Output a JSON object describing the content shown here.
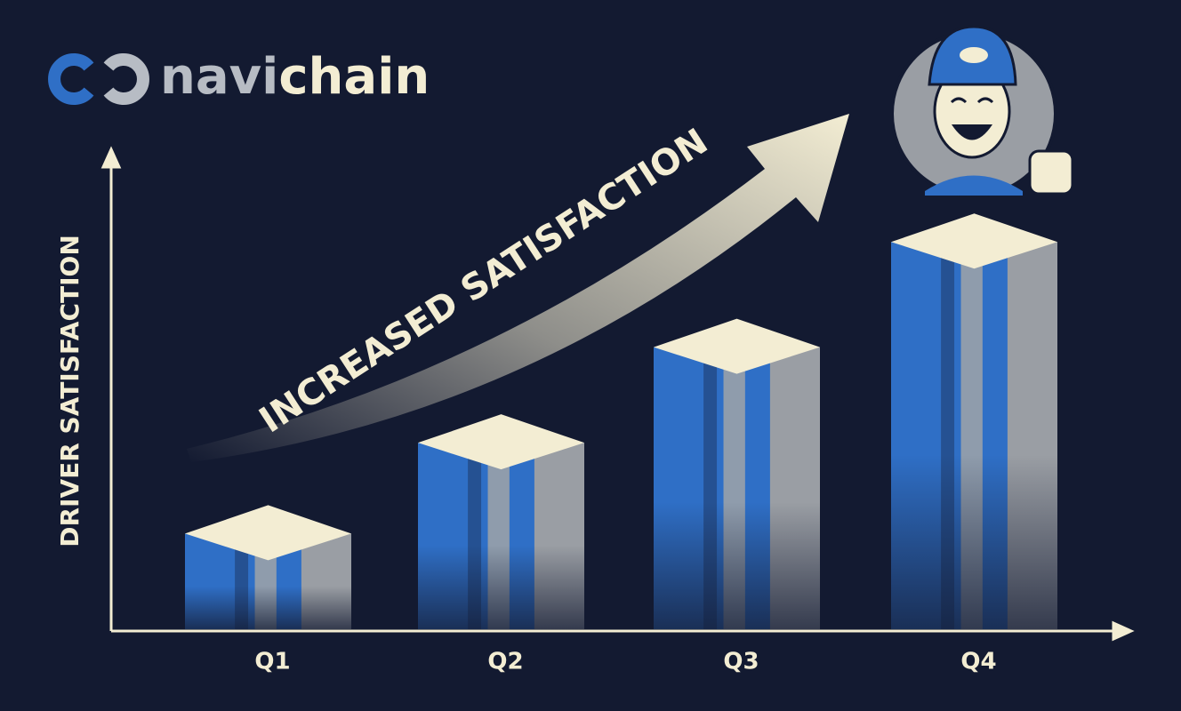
{
  "chart_data": {
    "type": "bar",
    "brand": [
      "navi",
      "chain"
    ],
    "annotation": "INCREASED SATISFACTION",
    "y_label": "DRIVER SATISFACTION",
    "categories": [
      "Q1",
      "Q2",
      "Q3",
      "Q4"
    ],
    "values": [
      20,
      39,
      59,
      81
    ],
    "ylim": [
      0,
      100
    ],
    "colors": {
      "front": "#2f6fc6",
      "stripe": "#8f9cac",
      "side": "#9a9ea4",
      "top": "#f3edd3"
    }
  }
}
